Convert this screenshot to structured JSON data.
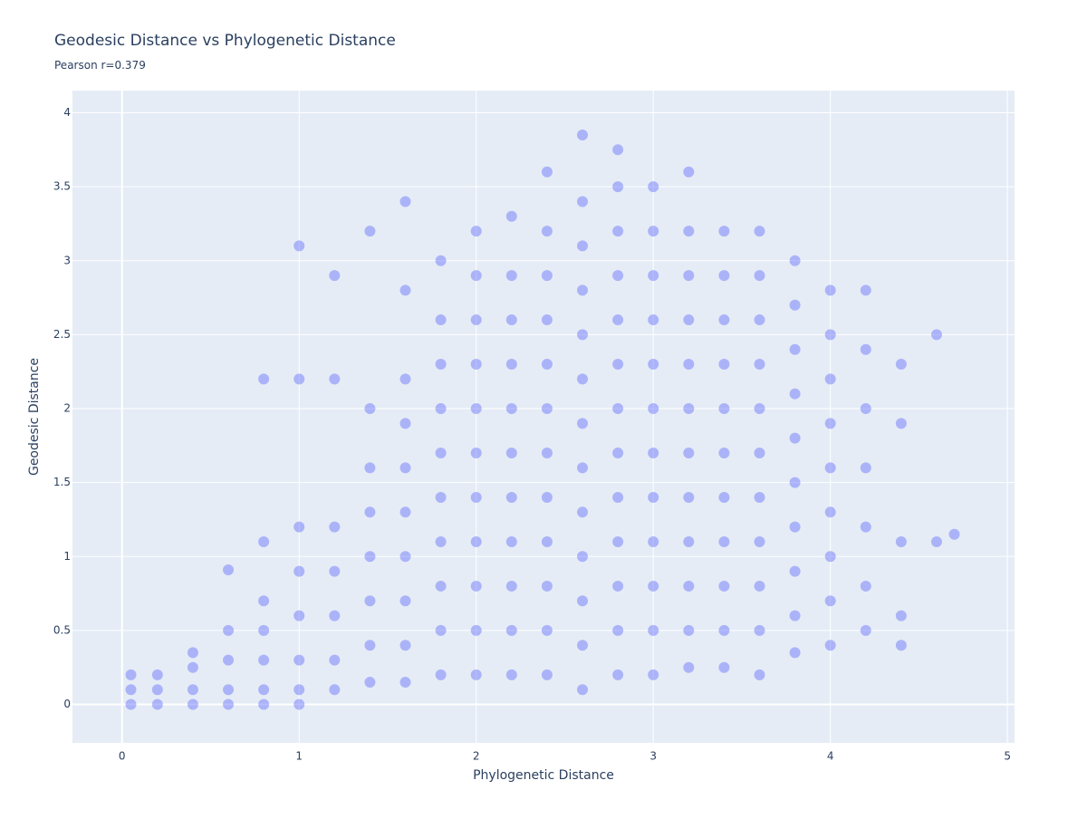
{
  "chart_data": {
    "type": "scatter",
    "title": "Geodesic Distance vs Phylogenetic Distance",
    "subtitle": "Pearson r=0.379",
    "x_label": "Phylogenetic Distance",
    "y_label": "Geodesic Distance",
    "color": "#636efa",
    "grid": true,
    "xlim": [
      -0.28,
      5.04
    ],
    "ylim": [
      -0.26,
      4.15
    ],
    "xticks": [
      0,
      1,
      2,
      3,
      4,
      5
    ],
    "yticks": [
      0,
      0.5,
      1,
      1.5,
      2,
      2.5,
      3,
      3.5,
      4
    ],
    "x": [
      0.05,
      0.05,
      0.05,
      0.2,
      0.2,
      0.2,
      0.4,
      0.4,
      0.4,
      0.4,
      0.6,
      0.6,
      0.6,
      0.6,
      0.6,
      0.8,
      0.8,
      0.8,
      0.8,
      0.8,
      0.8,
      0.8,
      1.0,
      1.0,
      1.0,
      1.0,
      1.0,
      1.0,
      1.0,
      1.0,
      1.2,
      1.2,
      1.2,
      1.2,
      1.2,
      1.2,
      1.2,
      1.4,
      1.4,
      1.4,
      1.4,
      1.4,
      1.4,
      1.4,
      1.4,
      1.6,
      1.6,
      1.6,
      1.6,
      1.6,
      1.6,
      1.6,
      1.6,
      1.6,
      1.6,
      1.8,
      1.8,
      1.8,
      1.8,
      1.8,
      1.8,
      1.8,
      1.8,
      1.8,
      1.8,
      2.0,
      2.0,
      2.0,
      2.0,
      2.0,
      2.0,
      2.0,
      2.0,
      2.0,
      2.0,
      2.0,
      2.2,
      2.2,
      2.2,
      2.2,
      2.2,
      2.2,
      2.2,
      2.2,
      2.2,
      2.2,
      2.2,
      2.4,
      2.4,
      2.4,
      2.4,
      2.4,
      2.4,
      2.4,
      2.4,
      2.4,
      2.4,
      2.4,
      2.4,
      2.6,
      2.6,
      2.6,
      2.6,
      2.6,
      2.6,
      2.6,
      2.6,
      2.6,
      2.6,
      2.6,
      2.6,
      2.6,
      2.8,
      2.8,
      2.8,
      2.8,
      2.8,
      2.8,
      2.8,
      2.8,
      2.8,
      2.8,
      2.8,
      2.8,
      2.8,
      3.0,
      3.0,
      3.0,
      3.0,
      3.0,
      3.0,
      3.0,
      3.0,
      3.0,
      3.0,
      3.0,
      3.0,
      3.2,
      3.2,
      3.2,
      3.2,
      3.2,
      3.2,
      3.2,
      3.2,
      3.2,
      3.2,
      3.2,
      3.2,
      3.4,
      3.4,
      3.4,
      3.4,
      3.4,
      3.4,
      3.4,
      3.4,
      3.4,
      3.4,
      3.4,
      3.6,
      3.6,
      3.6,
      3.6,
      3.6,
      3.6,
      3.6,
      3.6,
      3.6,
      3.6,
      3.6,
      3.8,
      3.8,
      3.8,
      3.8,
      3.8,
      3.8,
      3.8,
      3.8,
      3.8,
      3.8,
      4.0,
      4.0,
      4.0,
      4.0,
      4.0,
      4.0,
      4.0,
      4.0,
      4.0,
      4.2,
      4.2,
      4.2,
      4.2,
      4.2,
      4.2,
      4.2,
      4.4,
      4.4,
      4.4,
      4.4,
      4.4,
      4.6,
      4.6,
      4.7
    ],
    "y": [
      0,
      0.1,
      0.2,
      0,
      0.1,
      0.2,
      0,
      0.1,
      0.25,
      0.35,
      0,
      0.1,
      0.3,
      0.5,
      0.91,
      0,
      0.1,
      0.3,
      0.5,
      0.7,
      1.1,
      2.2,
      0,
      0.1,
      0.3,
      0.6,
      0.9,
      1.2,
      2.2,
      3.1,
      0.1,
      0.3,
      0.6,
      0.9,
      1.2,
      2.2,
      2.9,
      0.15,
      0.4,
      0.7,
      1.0,
      1.3,
      1.6,
      2.0,
      3.2,
      0.15,
      0.4,
      0.7,
      1.0,
      1.3,
      1.6,
      1.9,
      2.2,
      2.8,
      3.4,
      0.2,
      0.5,
      0.8,
      1.1,
      1.4,
      1.7,
      2.0,
      2.3,
      2.6,
      3.0,
      0.2,
      0.5,
      0.8,
      1.1,
      1.4,
      1.7,
      2.0,
      2.3,
      2.6,
      2.9,
      3.2,
      0.2,
      0.5,
      0.8,
      1.1,
      1.4,
      1.7,
      2.0,
      2.3,
      2.6,
      2.9,
      3.3,
      0.2,
      0.5,
      0.8,
      1.1,
      1.4,
      1.7,
      2.0,
      2.3,
      2.6,
      2.9,
      3.2,
      3.6,
      0.1,
      0.4,
      0.7,
      1.0,
      1.3,
      1.6,
      1.9,
      2.2,
      2.5,
      2.8,
      3.1,
      3.4,
      3.85,
      0.2,
      0.5,
      0.8,
      1.1,
      1.4,
      1.7,
      2.0,
      2.3,
      2.6,
      2.9,
      3.2,
      3.5,
      3.75,
      0.2,
      0.5,
      0.8,
      1.1,
      1.4,
      1.7,
      2.0,
      2.3,
      2.6,
      2.9,
      3.2,
      3.5,
      0.25,
      0.5,
      0.8,
      1.1,
      1.4,
      1.7,
      2.0,
      2.3,
      2.6,
      2.9,
      3.2,
      3.6,
      0.25,
      0.5,
      0.8,
      1.1,
      1.4,
      1.7,
      2.0,
      2.3,
      2.6,
      2.9,
      3.2,
      0.2,
      0.5,
      0.8,
      1.1,
      1.4,
      1.7,
      2.0,
      2.3,
      2.6,
      2.9,
      3.2,
      0.35,
      0.6,
      0.9,
      1.2,
      1.5,
      1.8,
      2.1,
      2.4,
      2.7,
      3.0,
      0.4,
      0.7,
      1.0,
      1.3,
      1.6,
      1.9,
      2.2,
      2.5,
      2.8,
      0.5,
      0.8,
      1.2,
      1.6,
      2.0,
      2.4,
      2.8,
      0.4,
      0.6,
      1.1,
      1.9,
      2.3,
      1.1,
      2.5,
      1.15
    ]
  }
}
